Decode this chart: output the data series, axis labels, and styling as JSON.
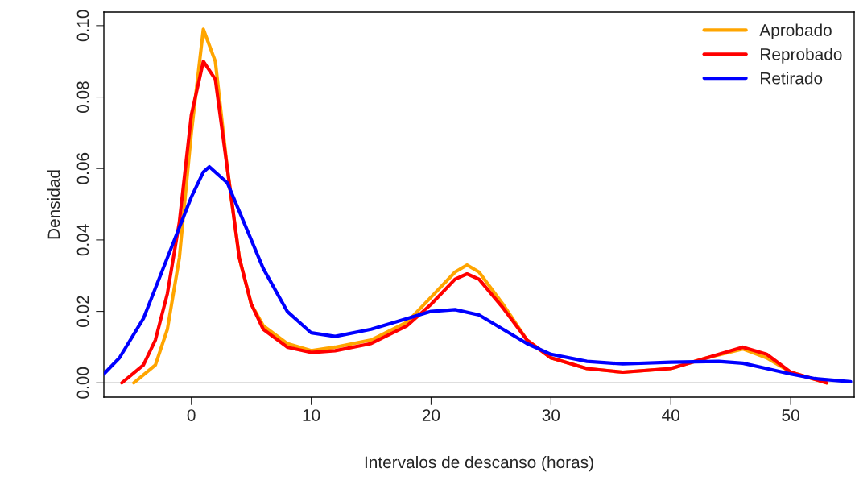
{
  "chart_data": {
    "type": "line",
    "xlabel": "Intervalos de descanso (horas)",
    "ylabel": "Densidad",
    "xlim": [
      -7.3,
      55.3
    ],
    "ylim": [
      -0.004,
      0.1038
    ],
    "xticks": [
      0,
      10,
      20,
      30,
      40,
      50
    ],
    "yticks": [
      {
        "value": 0,
        "label": "0.00"
      },
      {
        "value": 0.02,
        "label": "0.02"
      },
      {
        "value": 0.04,
        "label": "0.04"
      },
      {
        "value": 0.06,
        "label": "0.06"
      },
      {
        "value": 0.08,
        "label": "0.08"
      },
      {
        "value": 0.1,
        "label": "0.10"
      }
    ],
    "grid": false,
    "legend": "top right",
    "line_style": "solid",
    "marker": "none",
    "ref_lines": [
      {
        "axis": "y",
        "value": 0,
        "color": "#bebebe"
      }
    ],
    "series": [
      {
        "name": "Aprobado",
        "color": "#ffa500",
        "x": [
          -4.8,
          -3,
          -2,
          -1,
          0,
          1,
          2,
          3,
          4,
          5,
          6,
          8,
          10,
          12,
          15,
          18,
          20,
          22,
          23,
          24,
          26,
          28,
          30,
          33,
          36,
          40,
          43,
          46,
          48,
          50,
          53
        ],
        "values": [
          0,
          0.005,
          0.015,
          0.035,
          0.07,
          0.099,
          0.09,
          0.06,
          0.035,
          0.022,
          0.016,
          0.011,
          0.009,
          0.01,
          0.012,
          0.017,
          0.024,
          0.031,
          0.033,
          0.031,
          0.022,
          0.012,
          0.007,
          0.004,
          0.003,
          0.004,
          0.007,
          0.0095,
          0.007,
          0.003,
          0
        ]
      },
      {
        "name": "Reprobado",
        "color": "#ff0000",
        "x": [
          -5.8,
          -4,
          -3,
          -2,
          -1,
          0,
          1,
          2,
          3,
          4,
          5,
          6,
          8,
          10,
          12,
          15,
          18,
          20,
          22,
          23,
          24,
          26,
          28,
          30,
          33,
          36,
          40,
          43,
          46,
          48,
          50,
          53
        ],
        "values": [
          0,
          0.005,
          0.012,
          0.025,
          0.045,
          0.075,
          0.09,
          0.085,
          0.06,
          0.035,
          0.022,
          0.015,
          0.01,
          0.0085,
          0.009,
          0.011,
          0.016,
          0.022,
          0.029,
          0.0305,
          0.029,
          0.021,
          0.012,
          0.007,
          0.004,
          0.003,
          0.004,
          0.007,
          0.01,
          0.008,
          0.003,
          0
        ]
      },
      {
        "name": "Retirado",
        "color": "#0000ff",
        "x": [
          -7.3,
          -6,
          -4,
          -2,
          0,
          1,
          1.5,
          3,
          4,
          6,
          8,
          10,
          12,
          15,
          18,
          20,
          22,
          24,
          26,
          28,
          30,
          33,
          36,
          40,
          44,
          46,
          48,
          50,
          52,
          55
        ],
        "values": [
          0.0025,
          0.007,
          0.018,
          0.035,
          0.052,
          0.059,
          0.0605,
          0.056,
          0.048,
          0.032,
          0.02,
          0.014,
          0.013,
          0.015,
          0.018,
          0.02,
          0.0205,
          0.019,
          0.015,
          0.011,
          0.008,
          0.006,
          0.0053,
          0.0058,
          0.006,
          0.0055,
          0.004,
          0.0025,
          0.0012,
          0.0003
        ]
      }
    ]
  }
}
